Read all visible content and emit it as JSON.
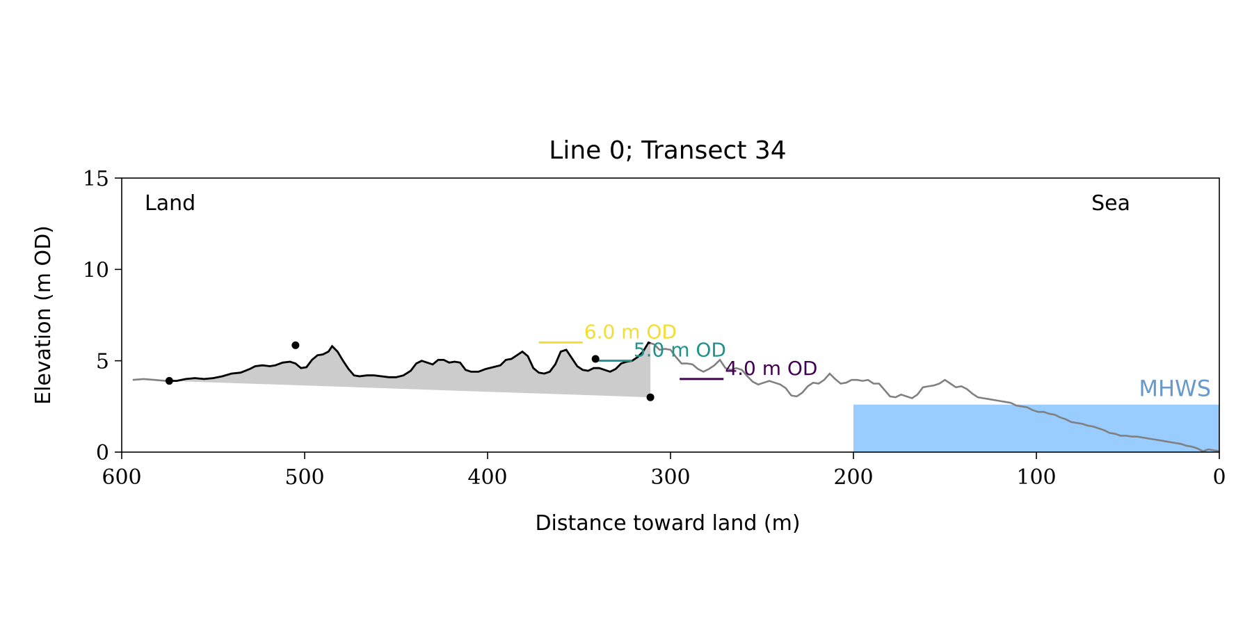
{
  "chart_data": {
    "type": "line",
    "title": "Line 0; Transect 34",
    "xlabel": "Distance toward land (m)",
    "ylabel": "Elevation (m OD)",
    "xlim": [
      600,
      0
    ],
    "ylim": [
      0,
      15
    ],
    "xticks": [
      600,
      500,
      400,
      300,
      200,
      100,
      0
    ],
    "yticks": [
      0,
      5,
      10,
      15
    ],
    "grid": false,
    "land_label": "Land",
    "sea_label": "Sea",
    "mhws": {
      "label": "MHWS",
      "elevation": 2.6,
      "x_start": 200,
      "x_end": 0,
      "color": "#99ccff"
    },
    "profile": {
      "color": "#808080",
      "points": [
        [
          594,
          3.95
        ],
        [
          588,
          4.0
        ],
        [
          582,
          3.95
        ],
        [
          576,
          3.9
        ],
        [
          570,
          3.9
        ],
        [
          565,
          4.0
        ],
        [
          560,
          4.05
        ],
        [
          555,
          4.0
        ],
        [
          550,
          4.05
        ],
        [
          545,
          4.15
        ],
        [
          540,
          4.3
        ],
        [
          535,
          4.35
        ],
        [
          530,
          4.55
        ],
        [
          527,
          4.7
        ],
        [
          523,
          4.75
        ],
        [
          519,
          4.7
        ],
        [
          516,
          4.75
        ],
        [
          512,
          4.9
        ],
        [
          508,
          4.95
        ],
        [
          505,
          4.85
        ],
        [
          502,
          4.6
        ],
        [
          499,
          4.65
        ],
        [
          496,
          5.05
        ],
        [
          493,
          5.3
        ],
        [
          490,
          5.35
        ],
        [
          487,
          5.5
        ],
        [
          485,
          5.8
        ],
        [
          482,
          5.5
        ],
        [
          479,
          5.0
        ],
        [
          476,
          4.55
        ],
        [
          473,
          4.2
        ],
        [
          470,
          4.15
        ],
        [
          466,
          4.2
        ],
        [
          462,
          4.2
        ],
        [
          458,
          4.15
        ],
        [
          454,
          4.1
        ],
        [
          450,
          4.1
        ],
        [
          446,
          4.2
        ],
        [
          442,
          4.45
        ],
        [
          439,
          4.85
        ],
        [
          436,
          5.0
        ],
        [
          433,
          4.9
        ],
        [
          430,
          4.8
        ],
        [
          427,
          5.05
        ],
        [
          424,
          5.05
        ],
        [
          421,
          4.9
        ],
        [
          418,
          4.95
        ],
        [
          415,
          4.9
        ],
        [
          412,
          4.5
        ],
        [
          409,
          4.4
        ],
        [
          405,
          4.4
        ],
        [
          401,
          4.55
        ],
        [
          397,
          4.65
        ],
        [
          393,
          4.75
        ],
        [
          390,
          5.05
        ],
        [
          387,
          5.1
        ],
        [
          384,
          5.3
        ],
        [
          381,
          5.5
        ],
        [
          378,
          5.25
        ],
        [
          375,
          4.6
        ],
        [
          372,
          4.35
        ],
        [
          369,
          4.3
        ],
        [
          366,
          4.4
        ],
        [
          363,
          4.8
        ],
        [
          360,
          5.5
        ],
        [
          357,
          5.6
        ],
        [
          354,
          5.15
        ],
        [
          351,
          4.7
        ],
        [
          348,
          4.5
        ],
        [
          345,
          4.45
        ],
        [
          342,
          4.6
        ],
        [
          339,
          4.6
        ],
        [
          336,
          4.5
        ],
        [
          333,
          4.4
        ],
        [
          330,
          4.55
        ],
        [
          327,
          4.85
        ],
        [
          324,
          4.95
        ],
        [
          321,
          5.0
        ],
        [
          318,
          5.2
        ],
        [
          315,
          5.5
        ],
        [
          312,
          6.0
        ],
        [
          309,
          5.9
        ],
        [
          306,
          5.6
        ],
        [
          303,
          5.65
        ],
        [
          300,
          5.6
        ],
        [
          297,
          5.2
        ],
        [
          294,
          4.85
        ],
        [
          291,
          4.85
        ],
        [
          288,
          4.8
        ],
        [
          285,
          4.55
        ],
        [
          282,
          4.4
        ],
        [
          279,
          4.55
        ],
        [
          276,
          4.75
        ],
        [
          273,
          5.05
        ],
        [
          270,
          4.6
        ],
        [
          267,
          4.5
        ],
        [
          264,
          4.6
        ],
        [
          261,
          4.5
        ],
        [
          258,
          4.15
        ],
        [
          255,
          3.85
        ],
        [
          252,
          3.7
        ],
        [
          249,
          3.8
        ],
        [
          246,
          3.9
        ],
        [
          243,
          3.8
        ],
        [
          240,
          3.7
        ],
        [
          237,
          3.5
        ],
        [
          234,
          3.1
        ],
        [
          231,
          3.05
        ],
        [
          228,
          3.25
        ],
        [
          225,
          3.6
        ],
        [
          222,
          3.8
        ],
        [
          219,
          3.75
        ],
        [
          216,
          3.95
        ],
        [
          213,
          4.3
        ],
        [
          210,
          4.0
        ],
        [
          207,
          3.75
        ],
        [
          204,
          3.8
        ],
        [
          201,
          3.95
        ],
        [
          198,
          3.95
        ],
        [
          195,
          3.9
        ],
        [
          192,
          3.95
        ],
        [
          189,
          3.75
        ],
        [
          186,
          3.75
        ],
        [
          183,
          3.4
        ],
        [
          180,
          3.05
        ],
        [
          177,
          3.0
        ],
        [
          174,
          3.15
        ],
        [
          171,
          3.05
        ],
        [
          168,
          2.95
        ],
        [
          165,
          3.15
        ],
        [
          162,
          3.55
        ],
        [
          159,
          3.6
        ],
        [
          156,
          3.65
        ],
        [
          153,
          3.75
        ],
        [
          150,
          3.95
        ],
        [
          147,
          3.75
        ],
        [
          144,
          3.55
        ],
        [
          141,
          3.6
        ],
        [
          138,
          3.45
        ],
        [
          135,
          3.2
        ],
        [
          132,
          3.0
        ],
        [
          129,
          2.95
        ],
        [
          126,
          2.9
        ],
        [
          123,
          2.85
        ],
        [
          120,
          2.8
        ],
        [
          117,
          2.75
        ],
        [
          114,
          2.7
        ],
        [
          111,
          2.55
        ],
        [
          108,
          2.5
        ],
        [
          105,
          2.45
        ],
        [
          102,
          2.3
        ],
        [
          99,
          2.2
        ],
        [
          96,
          2.2
        ],
        [
          93,
          2.1
        ],
        [
          90,
          2.05
        ],
        [
          87,
          1.9
        ],
        [
          84,
          1.8
        ],
        [
          81,
          1.65
        ],
        [
          78,
          1.6
        ],
        [
          75,
          1.55
        ],
        [
          72,
          1.45
        ],
        [
          69,
          1.4
        ],
        [
          66,
          1.3
        ],
        [
          63,
          1.2
        ],
        [
          60,
          1.05
        ],
        [
          57,
          1.0
        ],
        [
          54,
          0.9
        ],
        [
          51,
          0.9
        ],
        [
          48,
          0.85
        ],
        [
          45,
          0.85
        ],
        [
          42,
          0.8
        ],
        [
          39,
          0.75
        ],
        [
          36,
          0.7
        ],
        [
          33,
          0.65
        ],
        [
          30,
          0.6
        ],
        [
          27,
          0.55
        ],
        [
          24,
          0.5
        ],
        [
          21,
          0.45
        ],
        [
          18,
          0.35
        ],
        [
          15,
          0.3
        ],
        [
          12,
          0.2
        ],
        [
          9,
          0.05
        ],
        [
          6,
          0.15
        ],
        [
          3,
          0.1
        ],
        [
          0,
          0.05
        ]
      ]
    },
    "dune_section": {
      "x_start": 574,
      "x_end": 311,
      "line_color": "#000000",
      "fill_color": "#cccccc",
      "base_line": [
        [
          574,
          3.9
        ],
        [
          311,
          3.0
        ]
      ]
    },
    "markers": [
      {
        "x": 574,
        "y": 3.9
      },
      {
        "x": 505,
        "y": 5.85
      },
      {
        "x": 341,
        "y": 5.1
      },
      {
        "x": 311,
        "y": 3.0
      }
    ],
    "levels": [
      {
        "label": "6.0 m OD",
        "elevation": 6.0,
        "x_start": 372,
        "x_end": 348,
        "color": "#f5dd30"
      },
      {
        "label": "5.0 m OD",
        "elevation": 5.0,
        "x_start": 341,
        "x_end": 321,
        "color": "#21918c"
      },
      {
        "label": "4.0 m OD",
        "elevation": 4.0,
        "x_start": 295,
        "x_end": 271,
        "color": "#440154"
      }
    ]
  }
}
